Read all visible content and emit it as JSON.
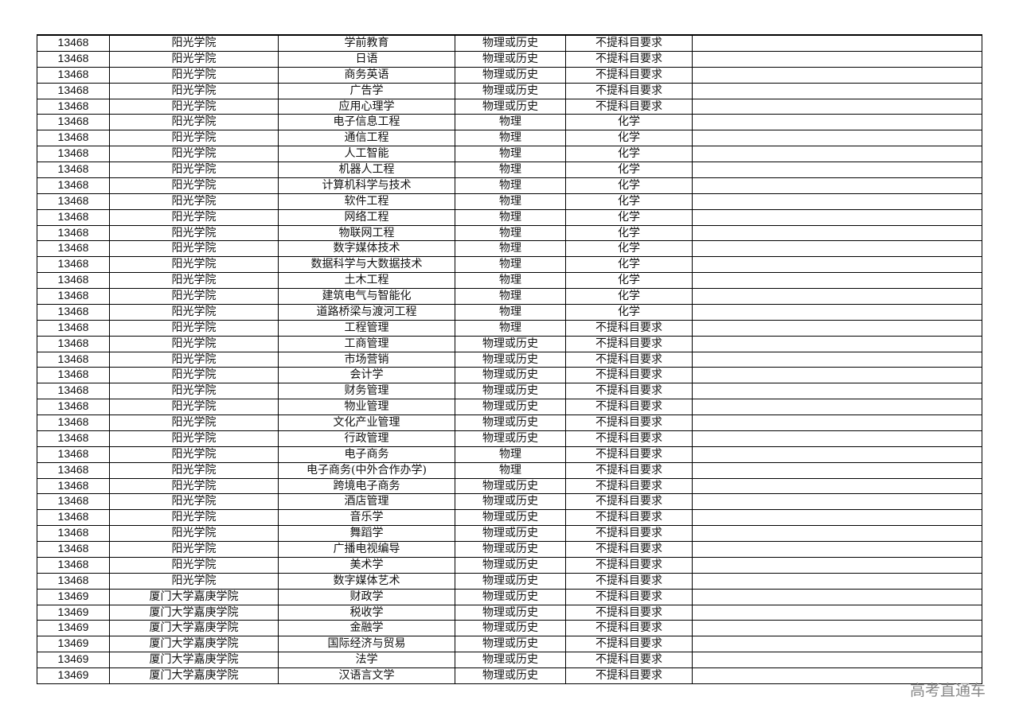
{
  "watermark": "高考直通车",
  "table": {
    "rows": [
      [
        "13468",
        "阳光学院",
        "学前教育",
        "物理或历史",
        "不提科目要求",
        ""
      ],
      [
        "13468",
        "阳光学院",
        "日语",
        "物理或历史",
        "不提科目要求",
        ""
      ],
      [
        "13468",
        "阳光学院",
        "商务英语",
        "物理或历史",
        "不提科目要求",
        ""
      ],
      [
        "13468",
        "阳光学院",
        "广告学",
        "物理或历史",
        "不提科目要求",
        ""
      ],
      [
        "13468",
        "阳光学院",
        "应用心理学",
        "物理或历史",
        "不提科目要求",
        ""
      ],
      [
        "13468",
        "阳光学院",
        "电子信息工程",
        "物理",
        "化学",
        ""
      ],
      [
        "13468",
        "阳光学院",
        "通信工程",
        "物理",
        "化学",
        ""
      ],
      [
        "13468",
        "阳光学院",
        "人工智能",
        "物理",
        "化学",
        ""
      ],
      [
        "13468",
        "阳光学院",
        "机器人工程",
        "物理",
        "化学",
        ""
      ],
      [
        "13468",
        "阳光学院",
        "计算机科学与技术",
        "物理",
        "化学",
        ""
      ],
      [
        "13468",
        "阳光学院",
        "软件工程",
        "物理",
        "化学",
        ""
      ],
      [
        "13468",
        "阳光学院",
        "网络工程",
        "物理",
        "化学",
        ""
      ],
      [
        "13468",
        "阳光学院",
        "物联网工程",
        "物理",
        "化学",
        ""
      ],
      [
        "13468",
        "阳光学院",
        "数字媒体技术",
        "物理",
        "化学",
        ""
      ],
      [
        "13468",
        "阳光学院",
        "数据科学与大数据技术",
        "物理",
        "化学",
        ""
      ],
      [
        "13468",
        "阳光学院",
        "土木工程",
        "物理",
        "化学",
        ""
      ],
      [
        "13468",
        "阳光学院",
        "建筑电气与智能化",
        "物理",
        "化学",
        ""
      ],
      [
        "13468",
        "阳光学院",
        "道路桥梁与渡河工程",
        "物理",
        "化学",
        ""
      ],
      [
        "13468",
        "阳光学院",
        "工程管理",
        "物理",
        "不提科目要求",
        ""
      ],
      [
        "13468",
        "阳光学院",
        "工商管理",
        "物理或历史",
        "不提科目要求",
        ""
      ],
      [
        "13468",
        "阳光学院",
        "市场营销",
        "物理或历史",
        "不提科目要求",
        ""
      ],
      [
        "13468",
        "阳光学院",
        "会计学",
        "物理或历史",
        "不提科目要求",
        ""
      ],
      [
        "13468",
        "阳光学院",
        "财务管理",
        "物理或历史",
        "不提科目要求",
        ""
      ],
      [
        "13468",
        "阳光学院",
        "物业管理",
        "物理或历史",
        "不提科目要求",
        ""
      ],
      [
        "13468",
        "阳光学院",
        "文化产业管理",
        "物理或历史",
        "不提科目要求",
        ""
      ],
      [
        "13468",
        "阳光学院",
        "行政管理",
        "物理或历史",
        "不提科目要求",
        ""
      ],
      [
        "13468",
        "阳光学院",
        "电子商务",
        "物理",
        "不提科目要求",
        ""
      ],
      [
        "13468",
        "阳光学院",
        "电子商务(中外合作办学)",
        "物理",
        "不提科目要求",
        ""
      ],
      [
        "13468",
        "阳光学院",
        "跨境电子商务",
        "物理或历史",
        "不提科目要求",
        ""
      ],
      [
        "13468",
        "阳光学院",
        "酒店管理",
        "物理或历史",
        "不提科目要求",
        ""
      ],
      [
        "13468",
        "阳光学院",
        "音乐学",
        "物理或历史",
        "不提科目要求",
        ""
      ],
      [
        "13468",
        "阳光学院",
        "舞蹈学",
        "物理或历史",
        "不提科目要求",
        ""
      ],
      [
        "13468",
        "阳光学院",
        "广播电视编导",
        "物理或历史",
        "不提科目要求",
        ""
      ],
      [
        "13468",
        "阳光学院",
        "美术学",
        "物理或历史",
        "不提科目要求",
        ""
      ],
      [
        "13468",
        "阳光学院",
        "数字媒体艺术",
        "物理或历史",
        "不提科目要求",
        ""
      ],
      [
        "13469",
        "厦门大学嘉庚学院",
        "财政学",
        "物理或历史",
        "不提科目要求",
        ""
      ],
      [
        "13469",
        "厦门大学嘉庚学院",
        "税收学",
        "物理或历史",
        "不提科目要求",
        ""
      ],
      [
        "13469",
        "厦门大学嘉庚学院",
        "金融学",
        "物理或历史",
        "不提科目要求",
        ""
      ],
      [
        "13469",
        "厦门大学嘉庚学院",
        "国际经济与贸易",
        "物理或历史",
        "不提科目要求",
        ""
      ],
      [
        "13469",
        "厦门大学嘉庚学院",
        "法学",
        "物理或历史",
        "不提科目要求",
        ""
      ],
      [
        "13469",
        "厦门大学嘉庚学院",
        "汉语言文学",
        "物理或历史",
        "不提科目要求",
        ""
      ]
    ]
  }
}
